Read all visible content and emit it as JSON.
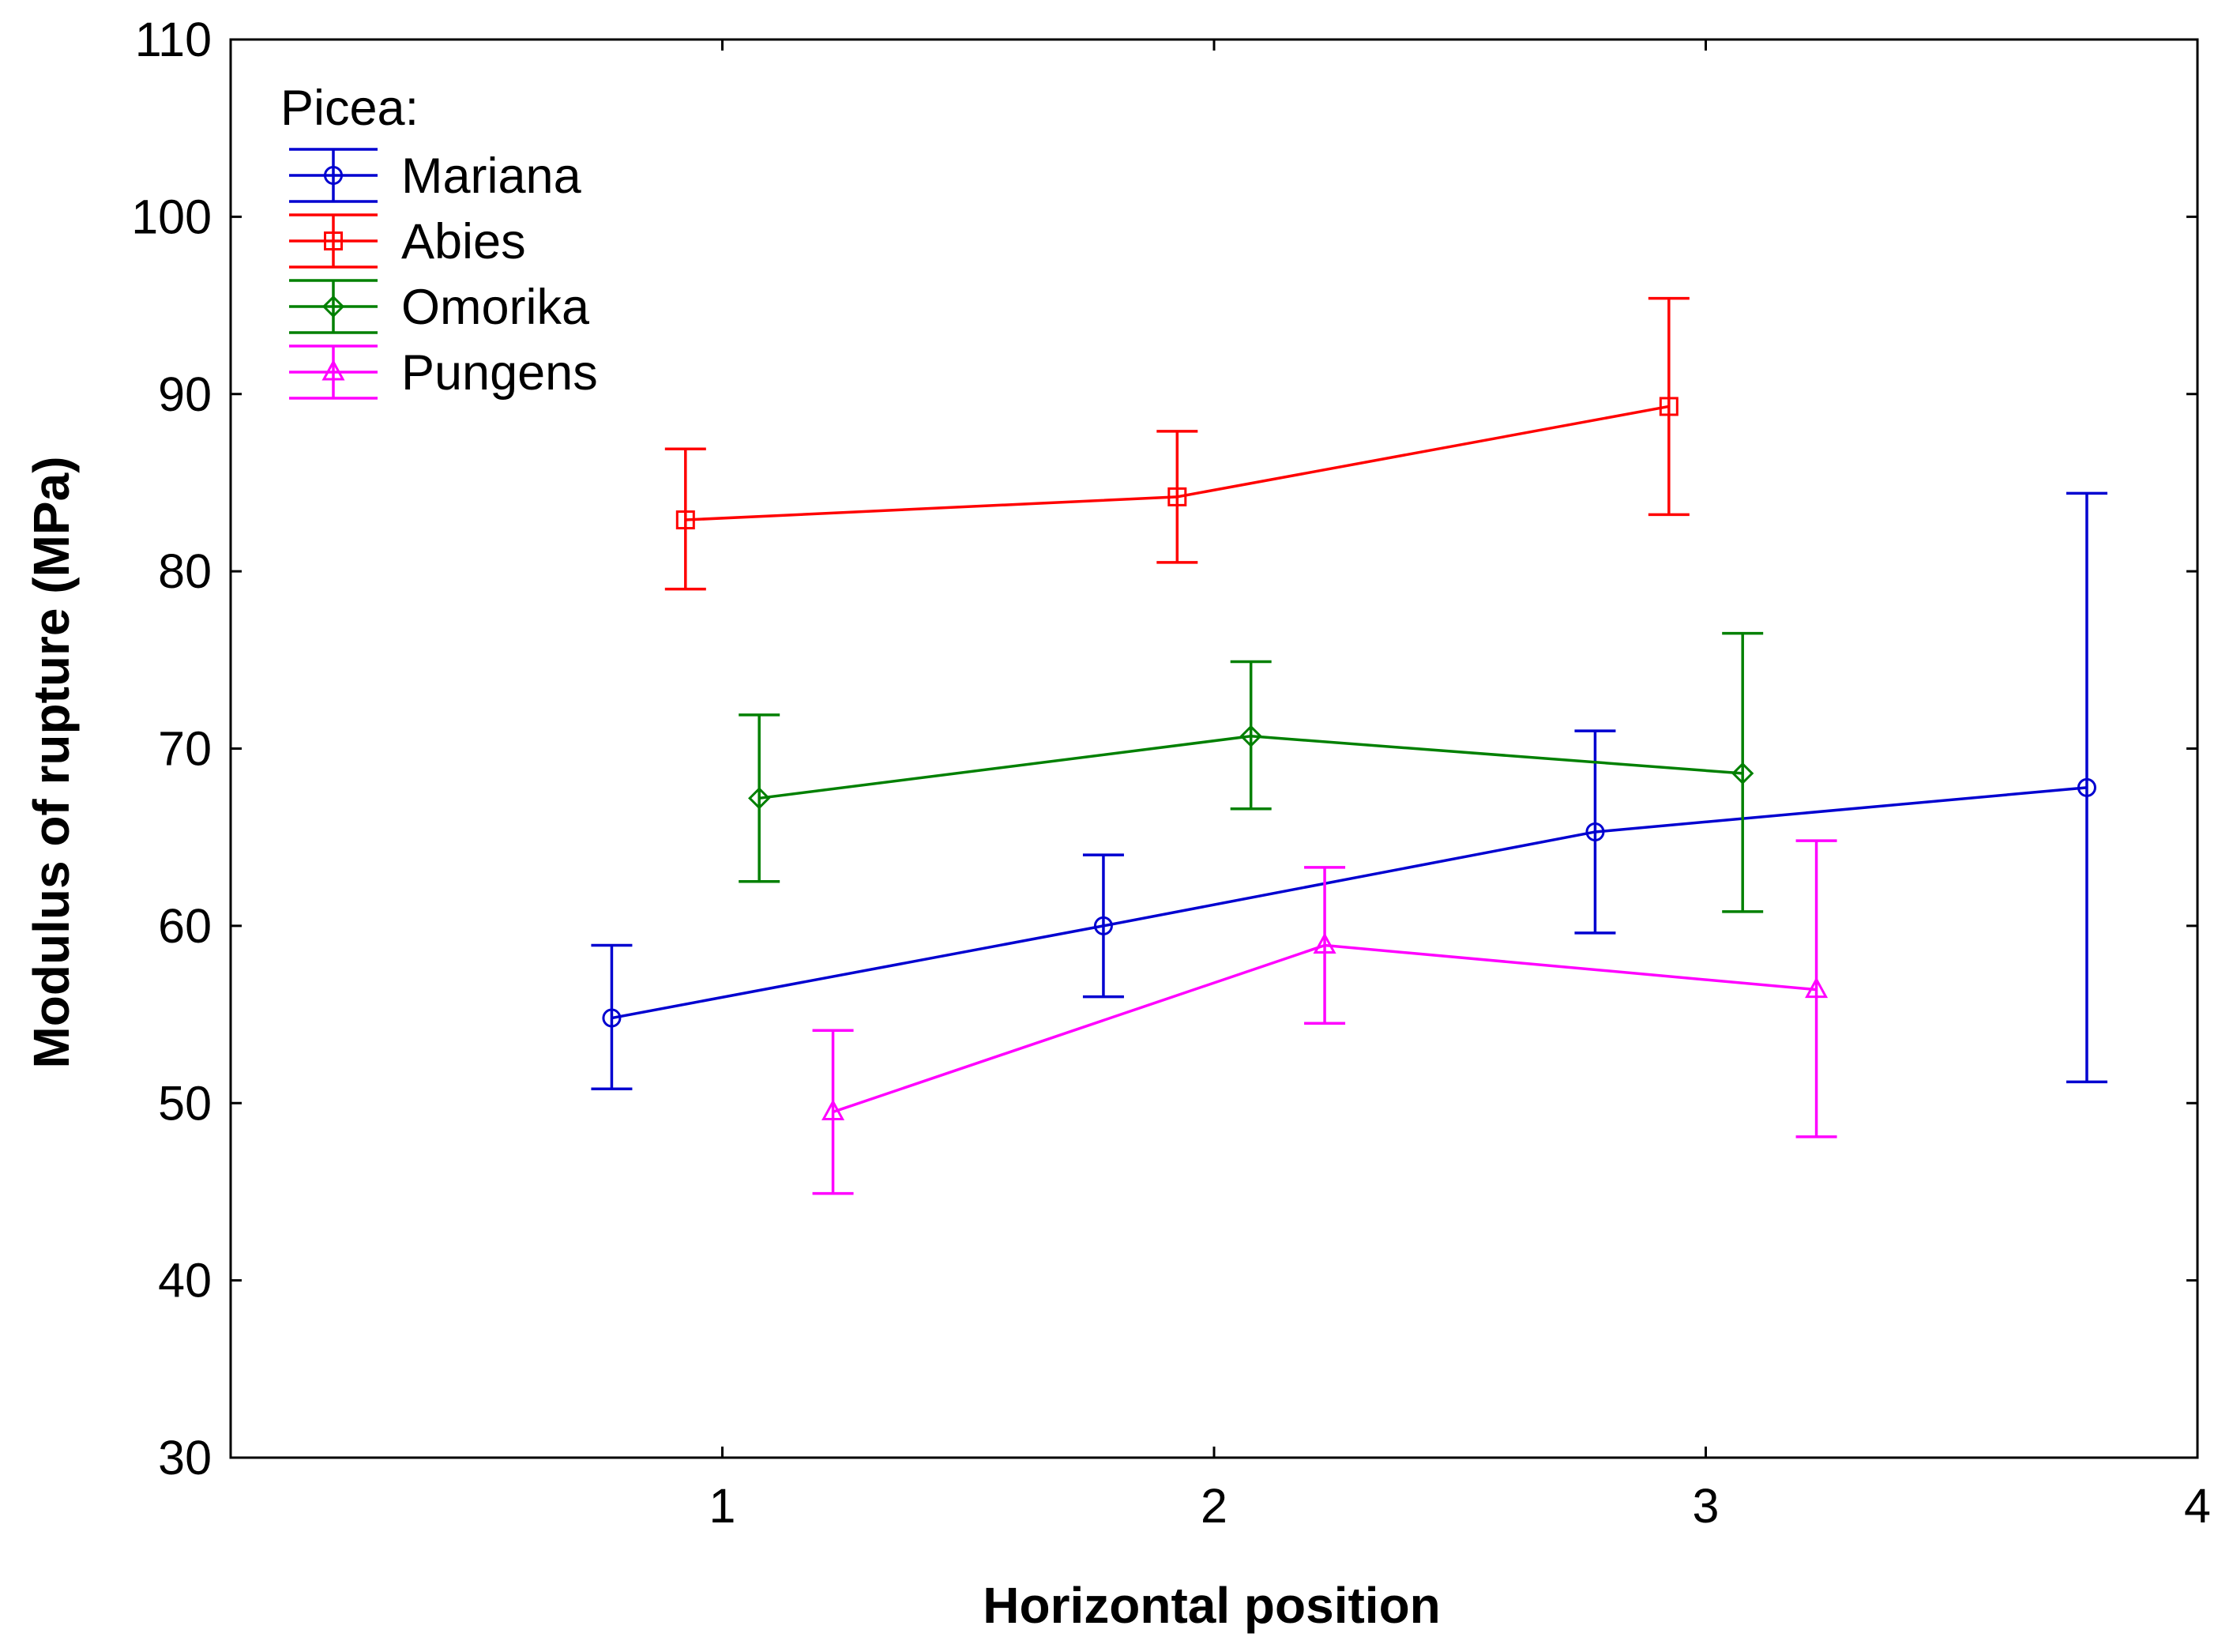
{
  "chart_data": {
    "type": "line",
    "title": "",
    "xlabel": "Horizontal position",
    "ylabel": "Modulus of rupture (MPa)",
    "xlim": [
      0,
      4
    ],
    "ylim": [
      30,
      110
    ],
    "xticks": [
      "1",
      "2",
      "3",
      "4"
    ],
    "yticks": [
      "30",
      "40",
      "50",
      "60",
      "70",
      "80",
      "90",
      "100",
      "110"
    ],
    "legend_title": "Picea:",
    "legend_position": "top-left",
    "grid": false,
    "series": [
      {
        "name": "Mariana",
        "color": "#0000d0",
        "marker": "circle",
        "x": [
          0.775,
          1.775,
          2.775,
          3.775
        ],
        "y": [
          54.8,
          60.0,
          65.3,
          67.8
        ],
        "y_lower": [
          50.8,
          56.0,
          59.6,
          51.2
        ],
        "y_upper": [
          58.9,
          64.0,
          71.0,
          84.4
        ]
      },
      {
        "name": "Abies",
        "color": "#ff0000",
        "marker": "square",
        "x": [
          0.925,
          1.925,
          2.925
        ],
        "y": [
          82.9,
          84.2,
          89.3
        ],
        "y_lower": [
          79.0,
          80.5,
          83.2
        ],
        "y_upper": [
          86.9,
          87.9,
          95.4
        ]
      },
      {
        "name": "Omorika",
        "color": "#008000",
        "marker": "diamond",
        "x": [
          1.075,
          2.075,
          3.075
        ],
        "y": [
          67.2,
          70.7,
          68.6
        ],
        "y_lower": [
          62.5,
          66.6,
          60.8
        ],
        "y_upper": [
          71.9,
          74.9,
          76.5
        ]
      },
      {
        "name": "Pungens",
        "color": "#ff00ff",
        "marker": "triangle",
        "x": [
          1.225,
          2.225,
          3.225
        ],
        "y": [
          49.5,
          58.9,
          56.4
        ],
        "y_lower": [
          44.9,
          54.5,
          48.1
        ],
        "y_upper": [
          54.1,
          63.3,
          64.8
        ]
      }
    ]
  }
}
